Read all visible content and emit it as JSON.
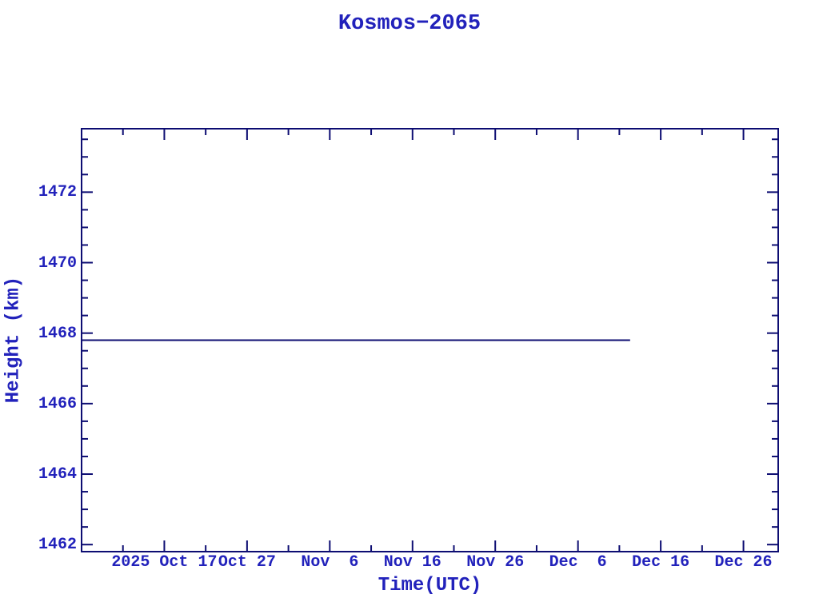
{
  "chart_data": {
    "type": "line",
    "title": "Kosmos−2065",
    "xlabel": "Time(UTC)",
    "ylabel": "Height (km)",
    "grid": false,
    "legend": "none",
    "x_axis": {
      "unit": "days",
      "range_days": [
        0,
        84.2
      ],
      "major_ticks": [
        {
          "day": 10,
          "label": "2025 Oct 17"
        },
        {
          "day": 20,
          "label": "Oct 27"
        },
        {
          "day": 30,
          "label": "Nov  6"
        },
        {
          "day": 40,
          "label": "Nov 16"
        },
        {
          "day": 50,
          "label": "Nov 26"
        },
        {
          "day": 60,
          "label": "Dec  6"
        },
        {
          "day": 70,
          "label": "Dec 16"
        },
        {
          "day": 80,
          "label": "Dec 26"
        }
      ],
      "minor_tick_days": [
        5,
        15,
        25,
        35,
        45,
        55,
        65,
        75
      ]
    },
    "y_axis": {
      "range": [
        1461.8,
        1473.8
      ],
      "major_ticks": [
        1462,
        1464,
        1466,
        1468,
        1470,
        1472
      ],
      "minor_step": 0.5
    },
    "series": [
      {
        "name": "height-km",
        "points": [
          {
            "day": 0.0,
            "value": 1467.8
          },
          {
            "day": 66.3,
            "value": 1467.8
          }
        ]
      }
    ],
    "colors": {
      "background": "#ffffff",
      "frame": "#0d0d72",
      "series_line": "#0d0d72",
      "text": "#2222bb"
    }
  }
}
